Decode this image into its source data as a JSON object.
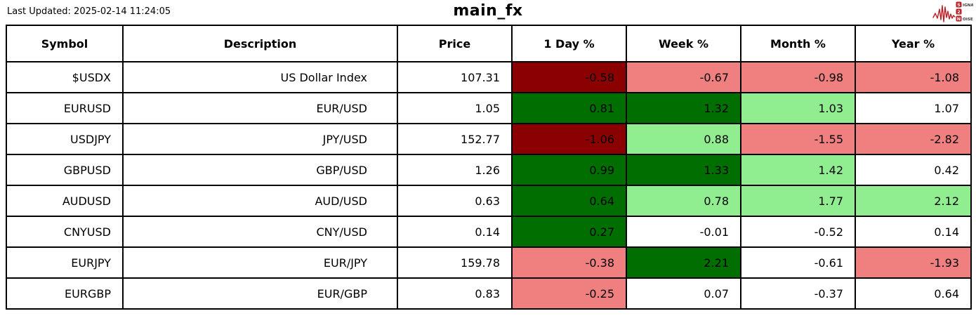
{
  "header": {
    "last_updated": "Last Updated: 2025-02-14 11:24:05",
    "title": "main_fx",
    "logo": {
      "line1_boxed": "S",
      "line1_rest": "IGNAL",
      "line2_boxed": "2",
      "line3_boxed": "N",
      "line3_rest": "OISE",
      "accent_color": "#bb1f26"
    }
  },
  "colors": {
    "dark_red": "#8b0000",
    "light_red": "#f08080",
    "dark_green": "#006e00",
    "light_green": "#90ee90",
    "none": "#ffffff"
  },
  "table": {
    "columns": [
      "Symbol",
      "Description",
      "Price",
      "1 Day %",
      "Week %",
      "Month %",
      "Year %"
    ],
    "rows": [
      {
        "symbol": "$USDX",
        "description": "US Dollar Index",
        "price": "107.31",
        "changes": [
          {
            "value": "-0.58",
            "bg": "dark_red"
          },
          {
            "value": "-0.67",
            "bg": "light_red"
          },
          {
            "value": "-0.98",
            "bg": "light_red"
          },
          {
            "value": "-1.08",
            "bg": "light_red"
          }
        ]
      },
      {
        "symbol": "EURUSD",
        "description": "EUR/USD",
        "price": "1.05",
        "changes": [
          {
            "value": "0.81",
            "bg": "dark_green"
          },
          {
            "value": "1.32",
            "bg": "dark_green"
          },
          {
            "value": "1.03",
            "bg": "light_green"
          },
          {
            "value": "1.07",
            "bg": "none"
          }
        ]
      },
      {
        "symbol": "USDJPY",
        "description": "JPY/USD",
        "price": "152.77",
        "changes": [
          {
            "value": "-1.06",
            "bg": "dark_red"
          },
          {
            "value": "0.88",
            "bg": "light_green"
          },
          {
            "value": "-1.55",
            "bg": "light_red"
          },
          {
            "value": "-2.82",
            "bg": "light_red"
          }
        ]
      },
      {
        "symbol": "GBPUSD",
        "description": "GBP/USD",
        "price": "1.26",
        "changes": [
          {
            "value": "0.99",
            "bg": "dark_green"
          },
          {
            "value": "1.33",
            "bg": "dark_green"
          },
          {
            "value": "1.42",
            "bg": "light_green"
          },
          {
            "value": "0.42",
            "bg": "none"
          }
        ]
      },
      {
        "symbol": "AUDUSD",
        "description": "AUD/USD",
        "price": "0.63",
        "changes": [
          {
            "value": "0.64",
            "bg": "dark_green"
          },
          {
            "value": "0.78",
            "bg": "light_green"
          },
          {
            "value": "1.77",
            "bg": "light_green"
          },
          {
            "value": "2.12",
            "bg": "light_green"
          }
        ]
      },
      {
        "symbol": "CNYUSD",
        "description": "CNY/USD",
        "price": "0.14",
        "changes": [
          {
            "value": "0.27",
            "bg": "dark_green"
          },
          {
            "value": "-0.01",
            "bg": "none"
          },
          {
            "value": "-0.52",
            "bg": "none"
          },
          {
            "value": "0.14",
            "bg": "none"
          }
        ]
      },
      {
        "symbol": "EURJPY",
        "description": "EUR/JPY",
        "price": "159.78",
        "changes": [
          {
            "value": "-0.38",
            "bg": "light_red"
          },
          {
            "value": "2.21",
            "bg": "dark_green"
          },
          {
            "value": "-0.61",
            "bg": "none"
          },
          {
            "value": "-1.93",
            "bg": "light_red"
          }
        ]
      },
      {
        "symbol": "EURGBP",
        "description": "EUR/GBP",
        "price": "0.83",
        "changes": [
          {
            "value": "-0.25",
            "bg": "light_red"
          },
          {
            "value": "0.07",
            "bg": "none"
          },
          {
            "value": "-0.37",
            "bg": "none"
          },
          {
            "value": "0.64",
            "bg": "none"
          }
        ]
      }
    ]
  },
  "chart_data": {
    "type": "table",
    "title": "main_fx",
    "columns": [
      "Symbol",
      "Description",
      "Price",
      "1 Day %",
      "Week %",
      "Month %",
      "Year %"
    ],
    "rows": [
      [
        "$USDX",
        "US Dollar Index",
        107.31,
        -0.58,
        -0.67,
        -0.98,
        -1.08
      ],
      [
        "EURUSD",
        "EUR/USD",
        1.05,
        0.81,
        1.32,
        1.03,
        1.07
      ],
      [
        "USDJPY",
        "JPY/USD",
        152.77,
        -1.06,
        0.88,
        -1.55,
        -2.82
      ],
      [
        "GBPUSD",
        "GBP/USD",
        1.26,
        0.99,
        1.33,
        1.42,
        0.42
      ],
      [
        "AUDUSD",
        "AUD/USD",
        0.63,
        0.64,
        0.78,
        1.77,
        2.12
      ],
      [
        "CNYUSD",
        "CNY/USD",
        0.14,
        0.27,
        -0.01,
        -0.52,
        0.14
      ],
      [
        "EURJPY",
        "EUR/JPY",
        159.78,
        -0.38,
        2.21,
        -0.61,
        -1.93
      ],
      [
        "EURGBP",
        "EUR/GBP",
        0.83,
        -0.25,
        0.07,
        -0.37,
        0.64
      ]
    ],
    "legend": "cell background encodes magnitude/sign of % change: dark_red strong loss, light_red loss, dark_green strong gain, light_green gain, white near zero"
  }
}
